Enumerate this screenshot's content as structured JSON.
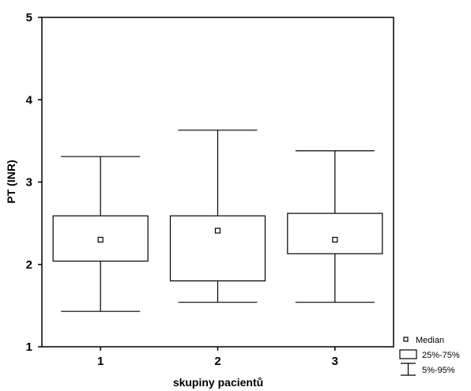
{
  "chart_data": {
    "type": "box",
    "xlabel": "skupiny pacientů",
    "ylabel": "PT (INR)",
    "ylim": [
      1,
      5
    ],
    "yticks": [
      "1",
      "2",
      "3",
      "4",
      "5"
    ],
    "categories": [
      "1",
      "2",
      "3"
    ],
    "boxes": [
      {
        "category": "1",
        "median": 2.3,
        "q1": 2.04,
        "q3": 2.59,
        "p5": 1.43,
        "p95": 3.31
      },
      {
        "category": "2",
        "median": 2.41,
        "q1": 1.8,
        "q3": 2.59,
        "p5": 1.54,
        "p95": 3.63
      },
      {
        "category": "3",
        "median": 2.3,
        "q1": 2.13,
        "q3": 2.62,
        "p5": 1.54,
        "p95": 3.38
      }
    ],
    "legend": {
      "placement": "bottom-right",
      "items": [
        {
          "symbol": "median-square",
          "label": "Median"
        },
        {
          "symbol": "box",
          "label": "25%-75%"
        },
        {
          "symbol": "whisker",
          "label": "5%-95%"
        }
      ]
    },
    "grid": false
  }
}
